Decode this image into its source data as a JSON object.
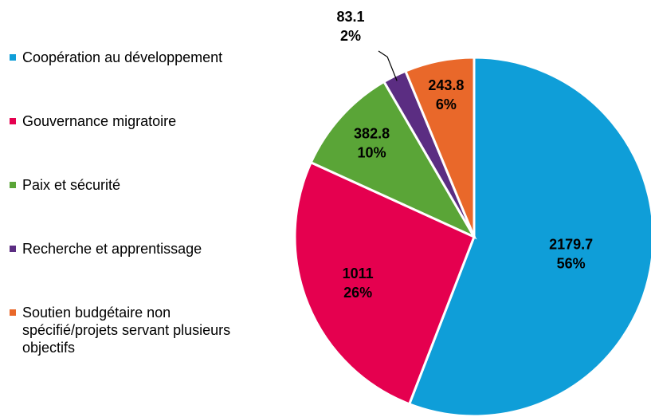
{
  "chart_data": {
    "type": "pie",
    "categories": [
      "Coopération au développement",
      "Gouvernance migratoire",
      "Paix et sécurité",
      "Recherche et apprentissage",
      "Soutien budgétaire non spécifié/projets servant plusieurs objectifs"
    ],
    "values": [
      2179.7,
      1011,
      382.8,
      83.1,
      243.8
    ],
    "value_labels": [
      "2179.7",
      "1011",
      "382.8",
      "83.1",
      "243.8"
    ],
    "percent_labels": [
      "56%",
      "26%",
      "10%",
      "2%",
      "6%"
    ],
    "colors": [
      "#0f9ed8",
      "#e5004f",
      "#5aa537",
      "#5b2d82",
      "#e9682a"
    ],
    "legend": "left"
  }
}
